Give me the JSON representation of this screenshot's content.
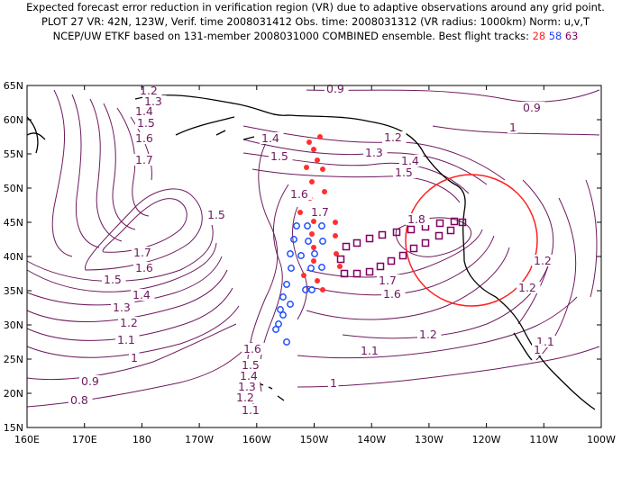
{
  "header": {
    "line1": "Expected forecast error reduction in verification region (VR) due to adaptive observations around any grid point.",
    "line2": "PLOT 27 VR: 42N, 123W, Verif. time 2008031412 Obs. time: 2008031312 (VR radius: 1000km) Norm: u,v,T",
    "line3_prefix": "NCEP/UW ETKF based on 131-member 2008031000 COMBINED ensemble.  Best flight tracks:",
    "track_a": "28",
    "track_b": "58",
    "track_c": "63"
  },
  "map": {
    "lon_labels": [
      "160E",
      "170E",
      "180",
      "170W",
      "160W",
      "150W",
      "140W",
      "130W",
      "120W",
      "110W",
      "100W"
    ],
    "lat_labels": [
      "15N",
      "20N",
      "25N",
      "30N",
      "35N",
      "40N",
      "45N",
      "50N",
      "55N",
      "60N",
      "65N"
    ],
    "contour_color": "#6e1a5e",
    "contour_labels": [
      {
        "text": "1.2"
      },
      {
        "text": "1.3"
      },
      {
        "text": "1.4"
      },
      {
        "text": "1.5"
      },
      {
        "text": "1.6"
      },
      {
        "text": "1.7"
      },
      {
        "text": "1.5"
      },
      {
        "text": "1.7"
      },
      {
        "text": "1.6"
      },
      {
        "text": "1.5"
      },
      {
        "text": "1.4"
      },
      {
        "text": "1.3"
      },
      {
        "text": "1.2"
      },
      {
        "text": "1.1"
      },
      {
        "text": "1"
      },
      {
        "text": "0.9"
      },
      {
        "text": "0.8"
      },
      {
        "text": "0.9"
      },
      {
        "text": "0.9"
      },
      {
        "text": "1"
      },
      {
        "text": "1.2"
      },
      {
        "text": "1.3"
      },
      {
        "text": "1.4"
      },
      {
        "text": "1.5"
      },
      {
        "text": "1.4"
      },
      {
        "text": "1.5"
      },
      {
        "text": "1.6"
      },
      {
        "text": "1.7"
      },
      {
        "text": "1.8"
      },
      {
        "text": "1.7"
      },
      {
        "text": "1.6"
      },
      {
        "text": "1.6"
      },
      {
        "text": "1.5"
      },
      {
        "text": "1.4"
      },
      {
        "text": "1.3"
      },
      {
        "text": "1.2"
      },
      {
        "text": "1.1"
      },
      {
        "text": "1.2"
      },
      {
        "text": "1.1"
      },
      {
        "text": "1"
      },
      {
        "text": "1.2"
      },
      {
        "text": "1.2"
      },
      {
        "text": "1.1"
      },
      {
        "text": "1"
      }
    ],
    "track_28_color": "#ff3030",
    "track_58_color": "#2050ff",
    "track_63_color": "#800060",
    "vr_circle_color": "#ff2020"
  }
}
